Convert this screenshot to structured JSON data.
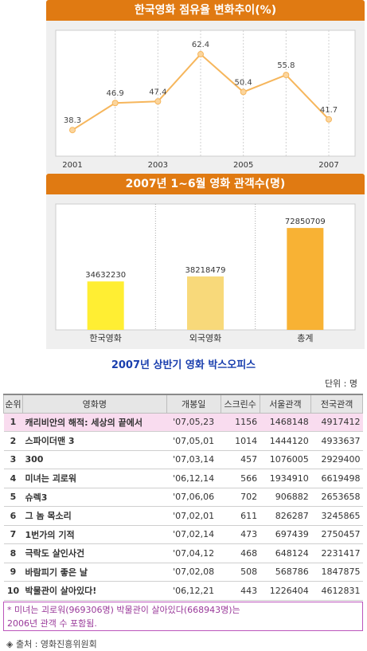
{
  "line_chart": {
    "title": "한국영화 점유율 변화추이(%)",
    "x_ticks": [
      "2001",
      "2003",
      "2005",
      "2007"
    ]
  },
  "bar_chart": {
    "title": "2007년 1~6월 영화 관객수(명)"
  },
  "chart_data": [
    {
      "type": "line",
      "title": "한국영화 점유율 변화추이(%)",
      "x": [
        "2001",
        "2002",
        "2003",
        "2004",
        "2005",
        "2006",
        "2007"
      ],
      "values": [
        38.3,
        46.9,
        47.4,
        62.4,
        50.4,
        55.8,
        41.7
      ],
      "x_tick_labels": [
        "2001",
        "2003",
        "2005",
        "2007"
      ],
      "ylim": [
        30,
        70
      ],
      "grid": "vertical",
      "color": "#f6b65c"
    },
    {
      "type": "bar",
      "title": "2007년 1~6월 영화 관객수(명)",
      "categories": [
        "한국영화",
        "외국영화",
        "총계"
      ],
      "values": [
        34632230,
        38218479,
        72850709
      ],
      "colors": [
        "#ffee33",
        "#f8d97a",
        "#f8b234"
      ],
      "ylim": [
        0,
        90000000
      ]
    }
  ],
  "box_office": {
    "title": "2007년 상반기 영화 박스오피스",
    "unit": "단위 : 명",
    "headers": [
      "순위",
      "영화명",
      "개봉일",
      "스크린수",
      "서울관객",
      "전국관객"
    ],
    "rows": [
      [
        "1",
        "캐리비안의 해적: 세상의 끝에서",
        "'07,05,23",
        "1156",
        "1468148",
        "4917412"
      ],
      [
        "2",
        "스파이더맨 3",
        "'07,05,01",
        "1014",
        "1444120",
        "4933637"
      ],
      [
        "3",
        "300",
        "'07,03,14",
        "457",
        "1076005",
        "2929400"
      ],
      [
        "4",
        "미녀는 괴로워",
        "'06,12,14",
        "566",
        "1934910",
        "6619498"
      ],
      [
        "5",
        "슈렉3",
        "'07,06,06",
        "702",
        "906882",
        "2653658"
      ],
      [
        "6",
        "그 놈 목소리",
        "'07,02,01",
        "611",
        "826287",
        "3245865"
      ],
      [
        "7",
        "1번가의 기적",
        "'07,02,14",
        "473",
        "697439",
        "2750457"
      ],
      [
        "8",
        "극락도 살인사건",
        "'07,04,12",
        "468",
        "648124",
        "2231417"
      ],
      [
        "9",
        "바람피기 좋은 날",
        "'07,02,08",
        "508",
        "568786",
        "1847875"
      ],
      [
        "10",
        "박물관이 살아있다!",
        "'06,12,21",
        "443",
        "1226404",
        "4612831"
      ]
    ],
    "highlight_color": "#f9dcef"
  },
  "note": {
    "line1": "* 미녀는 괴로워(969306명) 박물관이 살아있다(668943명)는",
    "line2": "2006년 관객 수 포함됨."
  },
  "source": "◈ 출처 : 영화진흥위원회"
}
